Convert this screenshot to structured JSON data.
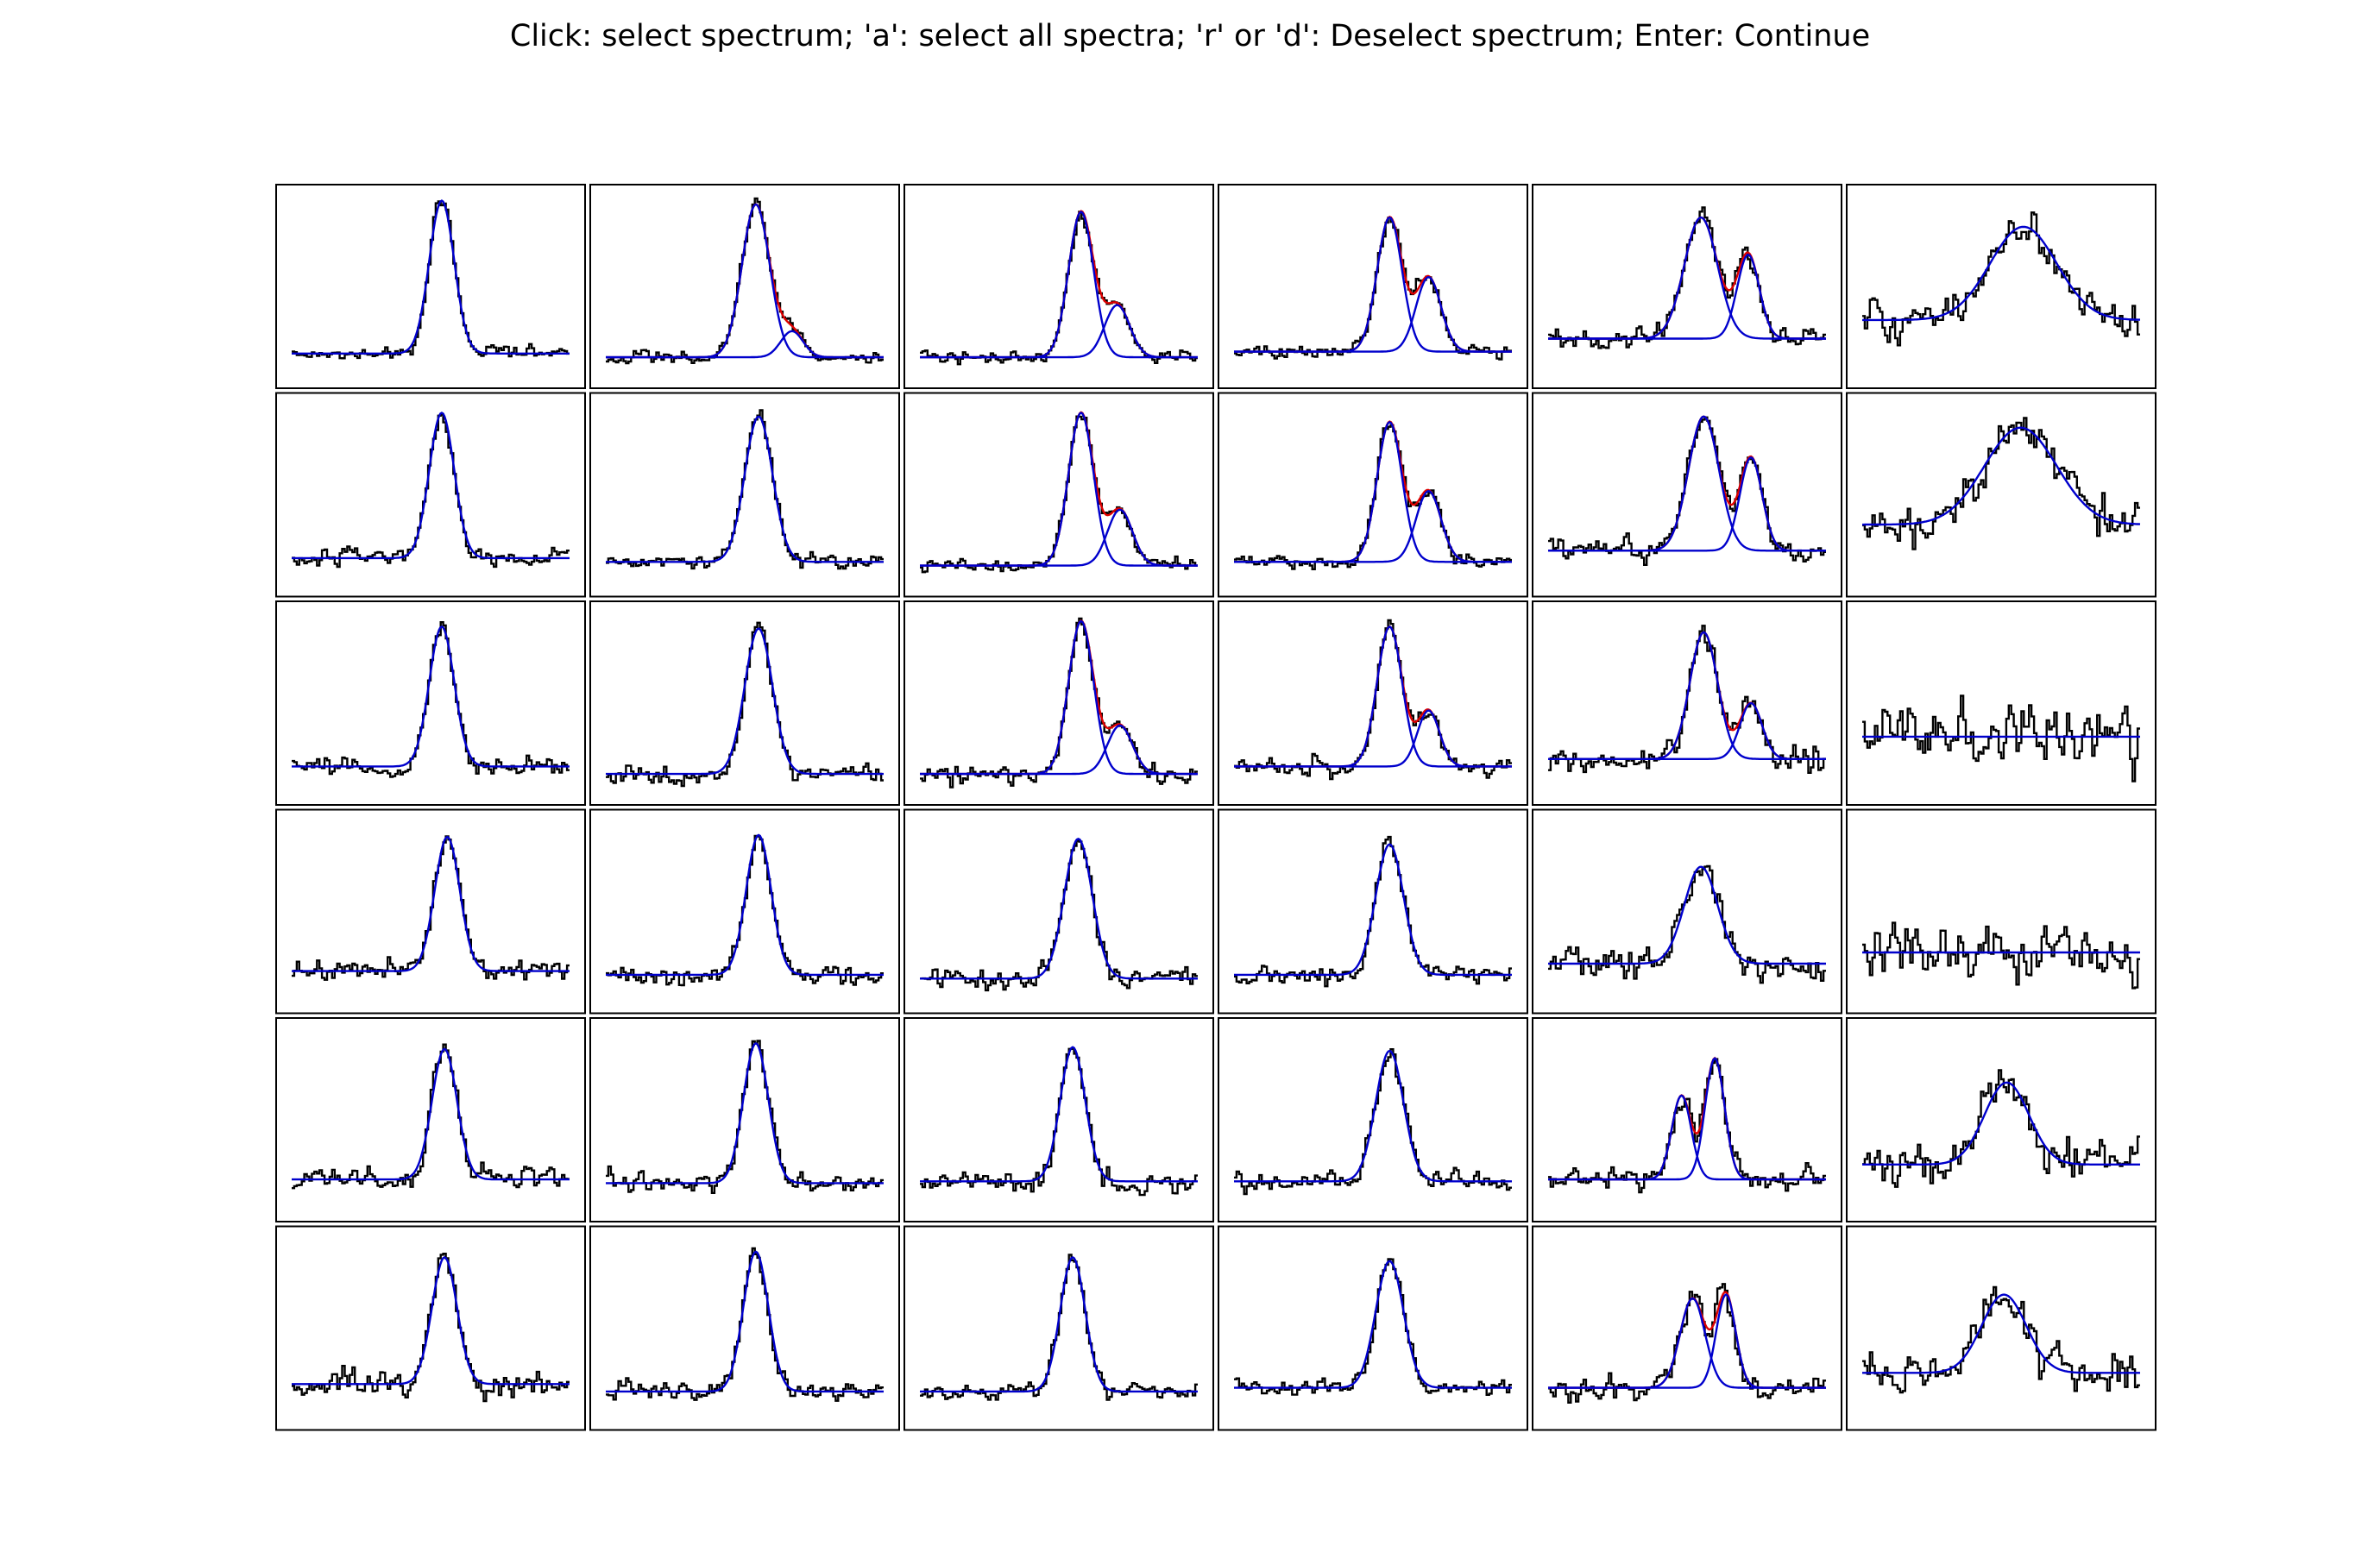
{
  "window": {
    "instructions": "Click: select spectrum; 'a': select all spectra; 'r' or 'd': Deselect spectrum; Enter: Continue"
  },
  "colors": {
    "background": "#ffffff",
    "frame": "#000000",
    "spectrum": "#000000",
    "component": "#0000cc",
    "total_fit": "#dd0000"
  },
  "chart_data": {
    "type": "line",
    "layout": {
      "rows": 6,
      "cols": 6
    },
    "axes_visible": false,
    "x_range": [
      0,
      1
    ],
    "y_range": [
      0,
      1
    ],
    "series_legend": [
      {
        "name": "",
        "role": "observed spectrum (step)",
        "color": "#000000"
      },
      {
        "name": "",
        "role": "fitted gaussian components",
        "color": "#0000cc"
      },
      {
        "name": "",
        "role": "total fit (sum of components)",
        "color": "#dd0000"
      }
    ],
    "panels": [
      {
        "row": 0,
        "col": 0,
        "baseline": 0.14,
        "noise": 0.035,
        "components": [
          {
            "amp": 0.82,
            "center": 0.54,
            "sigma": 0.045
          }
        ]
      },
      {
        "row": 0,
        "col": 1,
        "baseline": 0.12,
        "noise": 0.03,
        "components": [
          {
            "amp": 0.82,
            "center": 0.54,
            "sigma": 0.05
          },
          {
            "amp": 0.14,
            "center": 0.67,
            "sigma": 0.04
          }
        ]
      },
      {
        "row": 0,
        "col": 2,
        "baseline": 0.12,
        "noise": 0.03,
        "components": [
          {
            "amp": 0.78,
            "center": 0.58,
            "sigma": 0.045
          },
          {
            "amp": 0.28,
            "center": 0.71,
            "sigma": 0.045
          }
        ]
      },
      {
        "row": 0,
        "col": 3,
        "baseline": 0.15,
        "noise": 0.035,
        "components": [
          {
            "amp": 0.72,
            "center": 0.56,
            "sigma": 0.045
          },
          {
            "amp": 0.4,
            "center": 0.7,
            "sigma": 0.045
          }
        ]
      },
      {
        "row": 0,
        "col": 4,
        "baseline": 0.22,
        "noise": 0.05,
        "components": [
          {
            "amp": 0.65,
            "center": 0.55,
            "sigma": 0.06
          },
          {
            "amp": 0.45,
            "center": 0.72,
            "sigma": 0.04
          }
        ]
      },
      {
        "row": 0,
        "col": 5,
        "baseline": 0.32,
        "noise": 0.09,
        "components": [
          {
            "amp": 0.5,
            "center": 0.58,
            "sigma": 0.12
          }
        ]
      },
      {
        "row": 1,
        "col": 0,
        "baseline": 0.16,
        "noise": 0.04,
        "components": [
          {
            "amp": 0.78,
            "center": 0.54,
            "sigma": 0.045
          }
        ]
      },
      {
        "row": 1,
        "col": 1,
        "baseline": 0.14,
        "noise": 0.035,
        "components": [
          {
            "amp": 0.78,
            "center": 0.55,
            "sigma": 0.05
          }
        ]
      },
      {
        "row": 1,
        "col": 2,
        "baseline": 0.12,
        "noise": 0.03,
        "components": [
          {
            "amp": 0.82,
            "center": 0.58,
            "sigma": 0.045
          },
          {
            "amp": 0.3,
            "center": 0.72,
            "sigma": 0.045
          }
        ]
      },
      {
        "row": 1,
        "col": 3,
        "baseline": 0.14,
        "noise": 0.035,
        "components": [
          {
            "amp": 0.75,
            "center": 0.56,
            "sigma": 0.045
          },
          {
            "amp": 0.38,
            "center": 0.7,
            "sigma": 0.045
          }
        ]
      },
      {
        "row": 1,
        "col": 4,
        "baseline": 0.2,
        "noise": 0.05,
        "components": [
          {
            "amp": 0.72,
            "center": 0.56,
            "sigma": 0.055
          },
          {
            "amp": 0.5,
            "center": 0.73,
            "sigma": 0.04
          }
        ]
      },
      {
        "row": 1,
        "col": 5,
        "baseline": 0.34,
        "noise": 0.1,
        "components": [
          {
            "amp": 0.52,
            "center": 0.57,
            "sigma": 0.13
          }
        ]
      },
      {
        "row": 2,
        "col": 0,
        "baseline": 0.16,
        "noise": 0.045,
        "components": [
          {
            "amp": 0.75,
            "center": 0.54,
            "sigma": 0.045
          }
        ]
      },
      {
        "row": 2,
        "col": 1,
        "baseline": 0.12,
        "noise": 0.04,
        "components": [
          {
            "amp": 0.78,
            "center": 0.55,
            "sigma": 0.05
          }
        ]
      },
      {
        "row": 2,
        "col": 2,
        "baseline": 0.12,
        "noise": 0.04,
        "components": [
          {
            "amp": 0.82,
            "center": 0.58,
            "sigma": 0.045
          },
          {
            "amp": 0.26,
            "center": 0.72,
            "sigma": 0.045
          }
        ]
      },
      {
        "row": 2,
        "col": 3,
        "baseline": 0.16,
        "noise": 0.04,
        "components": [
          {
            "amp": 0.75,
            "center": 0.56,
            "sigma": 0.045
          },
          {
            "amp": 0.3,
            "center": 0.7,
            "sigma": 0.04
          }
        ]
      },
      {
        "row": 2,
        "col": 4,
        "baseline": 0.2,
        "noise": 0.06,
        "components": [
          {
            "amp": 0.68,
            "center": 0.56,
            "sigma": 0.05
          },
          {
            "amp": 0.3,
            "center": 0.73,
            "sigma": 0.04
          }
        ]
      },
      {
        "row": 2,
        "col": 5,
        "baseline": 0.32,
        "noise": 0.14,
        "components": []
      },
      {
        "row": 3,
        "col": 0,
        "baseline": 0.18,
        "noise": 0.05,
        "components": [
          {
            "amp": 0.72,
            "center": 0.56,
            "sigma": 0.045
          }
        ]
      },
      {
        "row": 3,
        "col": 1,
        "baseline": 0.16,
        "noise": 0.045,
        "components": [
          {
            "amp": 0.75,
            "center": 0.55,
            "sigma": 0.045
          }
        ]
      },
      {
        "row": 3,
        "col": 2,
        "baseline": 0.14,
        "noise": 0.045,
        "components": [
          {
            "amp": 0.75,
            "center": 0.57,
            "sigma": 0.05
          }
        ]
      },
      {
        "row": 3,
        "col": 3,
        "baseline": 0.16,
        "noise": 0.045,
        "components": [
          {
            "amp": 0.7,
            "center": 0.56,
            "sigma": 0.05
          }
        ]
      },
      {
        "row": 3,
        "col": 4,
        "baseline": 0.22,
        "noise": 0.07,
        "components": [
          {
            "amp": 0.52,
            "center": 0.55,
            "sigma": 0.06
          }
        ]
      },
      {
        "row": 3,
        "col": 5,
        "baseline": 0.28,
        "noise": 0.14,
        "components": []
      },
      {
        "row": 4,
        "col": 0,
        "baseline": 0.18,
        "noise": 0.06,
        "components": [
          {
            "amp": 0.7,
            "center": 0.55,
            "sigma": 0.045
          }
        ]
      },
      {
        "row": 4,
        "col": 1,
        "baseline": 0.16,
        "noise": 0.05,
        "components": [
          {
            "amp": 0.75,
            "center": 0.54,
            "sigma": 0.045
          }
        ]
      },
      {
        "row": 4,
        "col": 2,
        "baseline": 0.17,
        "noise": 0.05,
        "components": [
          {
            "amp": 0.72,
            "center": 0.55,
            "sigma": 0.045
          }
        ]
      },
      {
        "row": 4,
        "col": 3,
        "baseline": 0.17,
        "noise": 0.05,
        "components": [
          {
            "amp": 0.7,
            "center": 0.56,
            "sigma": 0.05
          }
        ]
      },
      {
        "row": 4,
        "col": 4,
        "baseline": 0.18,
        "noise": 0.06,
        "components": [
          {
            "amp": 0.45,
            "center": 0.48,
            "sigma": 0.035
          },
          {
            "amp": 0.65,
            "center": 0.6,
            "sigma": 0.035
          }
        ]
      },
      {
        "row": 4,
        "col": 5,
        "baseline": 0.26,
        "noise": 0.1,
        "components": [
          {
            "amp": 0.44,
            "center": 0.52,
            "sigma": 0.08
          }
        ]
      },
      {
        "row": 5,
        "col": 0,
        "baseline": 0.2,
        "noise": 0.06,
        "components": [
          {
            "amp": 0.68,
            "center": 0.55,
            "sigma": 0.045
          }
        ]
      },
      {
        "row": 5,
        "col": 1,
        "baseline": 0.16,
        "noise": 0.045,
        "components": [
          {
            "amp": 0.75,
            "center": 0.54,
            "sigma": 0.045
          }
        ]
      },
      {
        "row": 5,
        "col": 2,
        "baseline": 0.16,
        "noise": 0.04,
        "components": [
          {
            "amp": 0.72,
            "center": 0.55,
            "sigma": 0.045
          }
        ]
      },
      {
        "row": 5,
        "col": 3,
        "baseline": 0.18,
        "noise": 0.045,
        "components": [
          {
            "amp": 0.68,
            "center": 0.56,
            "sigma": 0.05
          }
        ]
      },
      {
        "row": 5,
        "col": 4,
        "baseline": 0.18,
        "noise": 0.06,
        "components": [
          {
            "amp": 0.48,
            "center": 0.52,
            "sigma": 0.045
          },
          {
            "amp": 0.5,
            "center": 0.64,
            "sigma": 0.035
          }
        ]
      },
      {
        "row": 5,
        "col": 5,
        "baseline": 0.26,
        "noise": 0.1,
        "components": [
          {
            "amp": 0.42,
            "center": 0.51,
            "sigma": 0.08
          }
        ]
      }
    ]
  }
}
